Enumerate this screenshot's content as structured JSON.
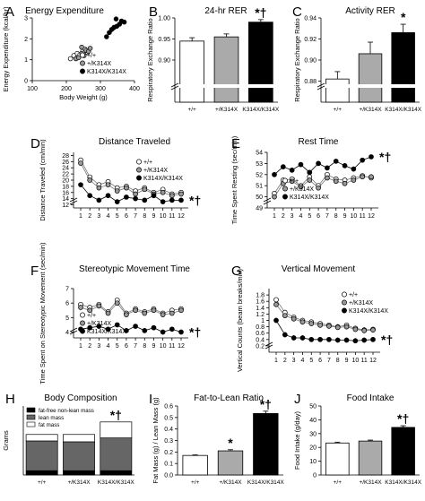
{
  "chart_data": [
    {
      "type": "scatter",
      "letter": "A",
      "title": "Energy Expenditure",
      "xlabel": "Body Weight (g)",
      "ylabel": "Energy Expenditure (kcal/hr)",
      "xlim": [
        100,
        400
      ],
      "ylim": [
        0,
        3
      ],
      "xticks": [
        100,
        200,
        300,
        400
      ],
      "yticks": [
        0,
        1,
        2,
        3
      ],
      "legend": [
        "+/+",
        "+/K314X",
        "K314X/K314X"
      ],
      "series": [
        {
          "name": "+/+",
          "color": "#ffffff",
          "points": [
            [
              212,
              1.05
            ],
            [
              222,
              1.2
            ],
            [
              232,
              1.3
            ],
            [
              240,
              1.25
            ],
            [
              248,
              1.4
            ],
            [
              255,
              1.5
            ],
            [
              262,
              1.35
            ]
          ]
        },
        {
          "name": "+/K314X",
          "color": "#999999",
          "points": [
            [
              228,
              1.05
            ],
            [
              236,
              1.1
            ],
            [
              245,
              1.3
            ],
            [
              252,
              1.2
            ],
            [
              258,
              1.45
            ],
            [
              265,
              1.4
            ],
            [
              270,
              1.55
            ],
            [
              245,
              1.6
            ]
          ]
        },
        {
          "name": "K314X/K314X",
          "color": "#000000",
          "points": [
            [
              318,
              2.1
            ],
            [
              326,
              2.3
            ],
            [
              333,
              2.45
            ],
            [
              340,
              2.55
            ],
            [
              348,
              2.6
            ],
            [
              356,
              2.7
            ],
            [
              362,
              2.85
            ],
            [
              370,
              2.8
            ],
            [
              346,
              2.95
            ]
          ]
        }
      ]
    },
    {
      "type": "bar",
      "letter": "B",
      "title": "24-hr RER",
      "ylabel": "Respiratory Exchange Ratio",
      "categories": [
        "+/+",
        "+/K314X",
        "K314X/K314X"
      ],
      "values": [
        0.945,
        0.955,
        0.99
      ],
      "errors": [
        0.008,
        0.007,
        0.006
      ],
      "colors": [
        "#ffffff",
        "#aaaaaa",
        "#000000"
      ],
      "ylim": [
        0.8,
        1.0
      ],
      "yticks": [
        0.9,
        0.95,
        1.0
      ],
      "ytick_labels": [
        "0.90",
        "0.95",
        "1.00"
      ],
      "annotation": "*†"
    },
    {
      "type": "bar",
      "letter": "C",
      "title": "Activity RER",
      "ylabel": "Respiratory Exchange Ratio",
      "categories": [
        "+/+",
        "+/K314X",
        "K314X/K314X"
      ],
      "values": [
        0.882,
        0.906,
        0.926
      ],
      "errors": [
        0.007,
        0.011,
        0.008
      ],
      "colors": [
        "#ffffff",
        "#aaaaaa",
        "#000000"
      ],
      "ylim": [
        0.86,
        0.94
      ],
      "yticks": [
        0.88,
        0.9,
        0.92,
        0.94
      ],
      "ytick_labels": [
        "0.88",
        "0.90",
        "0.92",
        "0.94"
      ],
      "annotation": "*"
    },
    {
      "type": "line",
      "letter": "D",
      "title": "Distance Traveled",
      "ylabel": "Distance Traveled (cm/min)",
      "x": [
        1,
        2,
        3,
        4,
        5,
        6,
        7,
        8,
        9,
        10,
        11,
        12
      ],
      "ylim": [
        11,
        29
      ],
      "yticks": [
        12,
        14,
        16,
        18,
        20,
        22,
        24,
        26,
        28
      ],
      "legend": [
        "+/+",
        "+/K314X",
        "K314X/K314X"
      ],
      "series": [
        {
          "name": "+/+",
          "color": "#ffffff",
          "values": [
            26.5,
            21,
            18.5,
            19.5,
            17.5,
            18,
            16.5,
            17.5,
            16,
            17,
            15.5,
            16
          ]
        },
        {
          "name": "+/K314X",
          "color": "#999999",
          "values": [
            25.5,
            20,
            17.5,
            18.5,
            16.5,
            17.5,
            15.5,
            17,
            15.5,
            16,
            15,
            15.5
          ]
        },
        {
          "name": "K314X/K314X",
          "color": "#000000",
          "values": [
            18.5,
            15,
            13.5,
            15,
            13,
            14.5,
            14,
            13.5,
            15,
            13,
            13.5,
            13.5
          ]
        }
      ],
      "annotation": "*†"
    },
    {
      "type": "line",
      "letter": "E",
      "title": "Rest Time",
      "ylabel": "Time Spent Resting (sec/min)",
      "x": [
        1,
        2,
        3,
        4,
        5,
        6,
        7,
        8,
        9,
        10,
        11,
        12
      ],
      "ylim": [
        49,
        54
      ],
      "yticks": [
        49,
        50,
        51,
        52,
        53,
        54
      ],
      "legend": [
        "+/+",
        "+/K314X",
        "K314X/K314X"
      ],
      "series": [
        {
          "name": "+/+",
          "color": "#ffffff",
          "values": [
            50.3,
            51.5,
            51.6,
            51.0,
            51.8,
            51.0,
            52.0,
            51.6,
            51.5,
            51.7,
            51.9,
            51.7
          ]
        },
        {
          "name": "+/K314X",
          "color": "#999999",
          "values": [
            50.0,
            51.2,
            51.4,
            50.9,
            51.5,
            50.8,
            51.7,
            51.4,
            51.2,
            51.5,
            51.8,
            51.8
          ]
        },
        {
          "name": "K314X/K314X",
          "color": "#000000",
          "values": [
            52.0,
            52.7,
            52.4,
            52.9,
            52.2,
            53.0,
            52.6,
            53.2,
            52.8,
            52.5,
            53.3,
            53.6
          ]
        }
      ],
      "annotation": "*†"
    },
    {
      "type": "line",
      "letter": "F",
      "title": "Stereotypic Movement Time",
      "ylabel": "Time Spent on Stereotypic Movement (sec/min)",
      "x": [
        1,
        2,
        3,
        4,
        5,
        6,
        7,
        8,
        9,
        10,
        11,
        12
      ],
      "ylim": [
        3.6,
        7
      ],
      "yticks": [
        4,
        5,
        6,
        7
      ],
      "legend": [
        "+/+",
        "+/K314X",
        "K314X/K314X"
      ],
      "series": [
        {
          "name": "+/+",
          "color": "#ffffff",
          "values": [
            5.9,
            5.7,
            5.9,
            5.4,
            6.2,
            5.3,
            5.6,
            5.4,
            5.6,
            5.3,
            5.5,
            5.6
          ]
        },
        {
          "name": "+/K314X",
          "color": "#999999",
          "values": [
            5.7,
            5.5,
            5.8,
            5.3,
            6.0,
            5.2,
            5.5,
            5.3,
            5.5,
            5.2,
            5.3,
            5.5
          ]
        },
        {
          "name": "K314X/K314X",
          "color": "#000000",
          "values": [
            4.2,
            4.3,
            4.4,
            4.2,
            4.5,
            4.1,
            4.4,
            4.1,
            4.3,
            4.0,
            4.2,
            4.0
          ]
        }
      ],
      "annotation": "*†"
    },
    {
      "type": "line",
      "letter": "G",
      "title": "Vertical Movement",
      "ylabel": "Vertical Counts (beam breaks/min)",
      "x": [
        1,
        2,
        3,
        4,
        5,
        6,
        7,
        8,
        9,
        10,
        11,
        12
      ],
      "ylim": [
        0,
        2
      ],
      "yticks": [
        0.2,
        0.4,
        0.6,
        0.8,
        1.0,
        1.2,
        1.4,
        1.6,
        1.8
      ],
      "legend": [
        "+/+",
        "+/K314X",
        "K314X/K314X"
      ],
      "series": [
        {
          "name": "+/+",
          "color": "#ffffff",
          "values": [
            1.65,
            1.25,
            1.1,
            1.0,
            0.95,
            0.9,
            0.85,
            0.8,
            0.85,
            0.75,
            0.7,
            0.72
          ]
        },
        {
          "name": "+/K314X",
          "color": "#999999",
          "values": [
            1.5,
            1.15,
            1.05,
            0.95,
            0.9,
            0.85,
            0.82,
            0.78,
            0.8,
            0.72,
            0.68,
            0.7
          ]
        },
        {
          "name": "K314X/K314X",
          "color": "#000000",
          "values": [
            1.0,
            0.55,
            0.45,
            0.45,
            0.4,
            0.4,
            0.4,
            0.38,
            0.38,
            0.36,
            0.38,
            0.4
          ]
        }
      ],
      "annotation": "*†"
    },
    {
      "type": "bar",
      "letter": "H",
      "title": "Body Composition",
      "ylabel": "Grams",
      "categories": [
        "+/+",
        "+/K314X",
        "K314X/K314X"
      ],
      "stacked": true,
      "series": [
        {
          "name": "fat-free non-lean mass",
          "color": "#000000",
          "values": [
            50,
            50,
            50
          ]
        },
        {
          "name": "lean mass",
          "color": "#666666",
          "values": [
            345,
            335,
            380
          ]
        },
        {
          "name": "fat mass",
          "color": "#ffffff",
          "values": [
            75,
            85,
            185
          ]
        }
      ],
      "ylim": [
        0,
        800
      ],
      "yticks": [
        0,
        100,
        200,
        300,
        400,
        500,
        600,
        700,
        800
      ],
      "legend": [
        "fat-free non-lean mass",
        "lean mass",
        "fat mass"
      ],
      "annotation": "*†"
    },
    {
      "type": "bar",
      "letter": "I",
      "title": "Fat-to-Lean Ratio",
      "ylabel": "Fat Mass (g) / Lean Mass (g)",
      "categories": [
        "+/+",
        "+/K314X",
        "K314X/K314X"
      ],
      "values": [
        0.17,
        0.21,
        0.535
      ],
      "errors": [
        0.005,
        0.01,
        0.02
      ],
      "colors": [
        "#ffffff",
        "#aaaaaa",
        "#000000"
      ],
      "ylim": [
        0,
        0.6
      ],
      "yticks": [
        0.0,
        0.1,
        0.2,
        0.3,
        0.4,
        0.5,
        0.6
      ],
      "ytick_labels": [
        "0.0",
        "0.1",
        "0.2",
        "0.3",
        "0.4",
        "0.5",
        "0.6"
      ],
      "annotations": [
        "",
        "*",
        "*†"
      ]
    },
    {
      "type": "bar",
      "letter": "J",
      "title": "Food Intake",
      "ylabel": "Food Intake (g/day)",
      "categories": [
        "+/+",
        "+/K314X",
        "K314X/K314X"
      ],
      "values": [
        23.2,
        24.6,
        34.5
      ],
      "errors": [
        0.6,
        0.7,
        1.2
      ],
      "colors": [
        "#ffffff",
        "#aaaaaa",
        "#000000"
      ],
      "ylim": [
        0,
        50
      ],
      "yticks": [
        0,
        10,
        20,
        30,
        40,
        50
      ],
      "annotation": "*†"
    }
  ]
}
